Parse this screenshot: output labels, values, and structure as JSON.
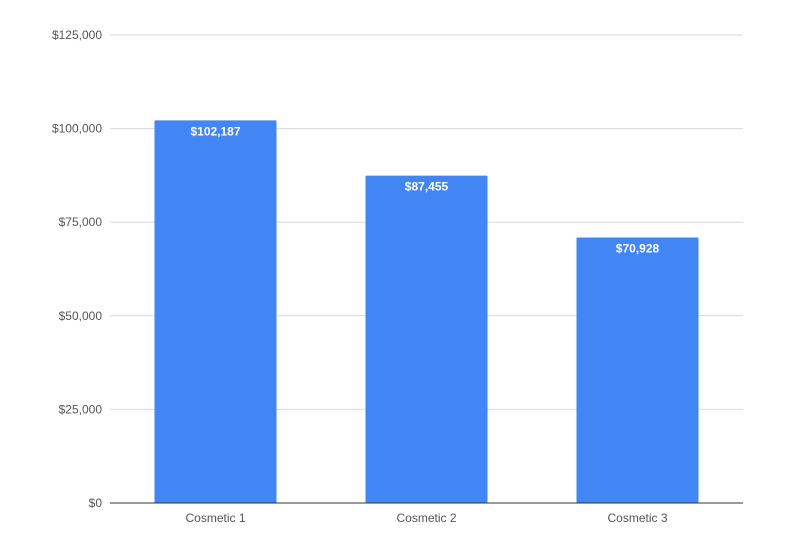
{
  "colors": {
    "bar": "#4285f4",
    "grid": "#d9d9d9",
    "baseline": "#333333",
    "tick_text": "#555555",
    "data_label": "#ffffff"
  },
  "chart_data": {
    "type": "bar",
    "categories": [
      "Cosmetic 1",
      "Cosmetic 2",
      "Cosmetic 3"
    ],
    "values": [
      102187,
      87455,
      70928
    ],
    "data_labels": [
      "$102,187",
      "$87,455",
      "$70,928"
    ],
    "yticks": [
      0,
      25000,
      50000,
      75000,
      100000,
      125000
    ],
    "ytick_labels": [
      "$0",
      "$25,000",
      "$50,000",
      "$75,000",
      "$100,000",
      "$125,000"
    ],
    "ylim": [
      0,
      125000
    ],
    "grid": true,
    "legend": "none"
  }
}
